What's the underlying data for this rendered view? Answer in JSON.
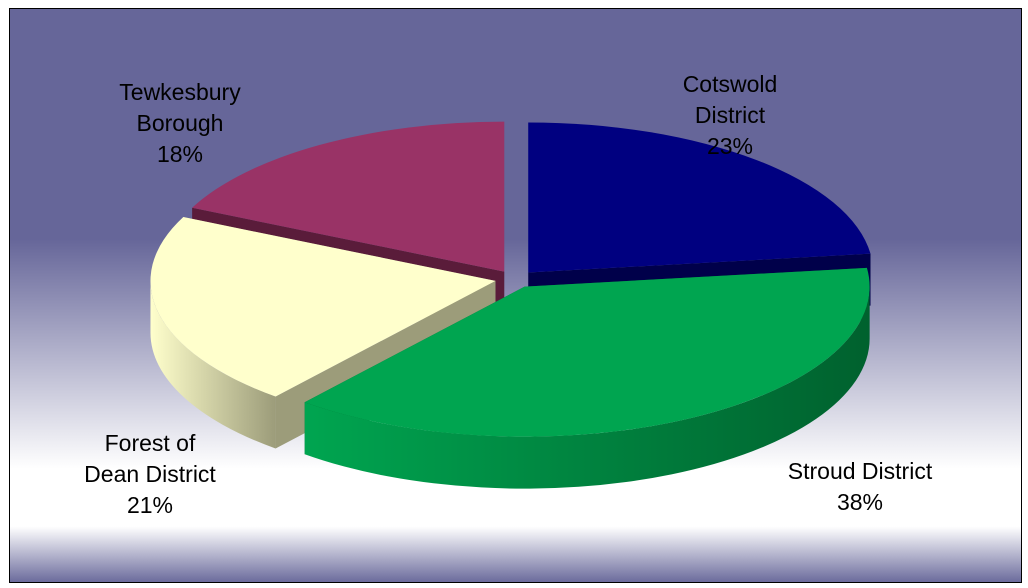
{
  "chart_data": {
    "type": "pie",
    "style": "3d-exploded",
    "title": "",
    "background": {
      "top": "#666699",
      "middle": "#ffffff",
      "bottom": "#666699"
    },
    "slices": [
      {
        "name_lines": [
          "Cotswold",
          "District"
        ],
        "value": 23,
        "pct_label": "23%",
        "color": "#000080",
        "side_color": "#00004a"
      },
      {
        "name_lines": [
          "Stroud District"
        ],
        "value": 38,
        "pct_label": "38%",
        "color": "#00a550",
        "side_color": "#00612e"
      },
      {
        "name_lines": [
          "Forest of",
          "Dean District"
        ],
        "value": 21,
        "pct_label": "21%",
        "color": "#ffffcc",
        "side_color": "#9c9c7a"
      },
      {
        "name_lines": [
          "Tewkesbury",
          "Borough"
        ],
        "value": 18,
        "pct_label": "18%",
        "color": "#993366",
        "side_color": "#5a1c3a"
      }
    ]
  }
}
